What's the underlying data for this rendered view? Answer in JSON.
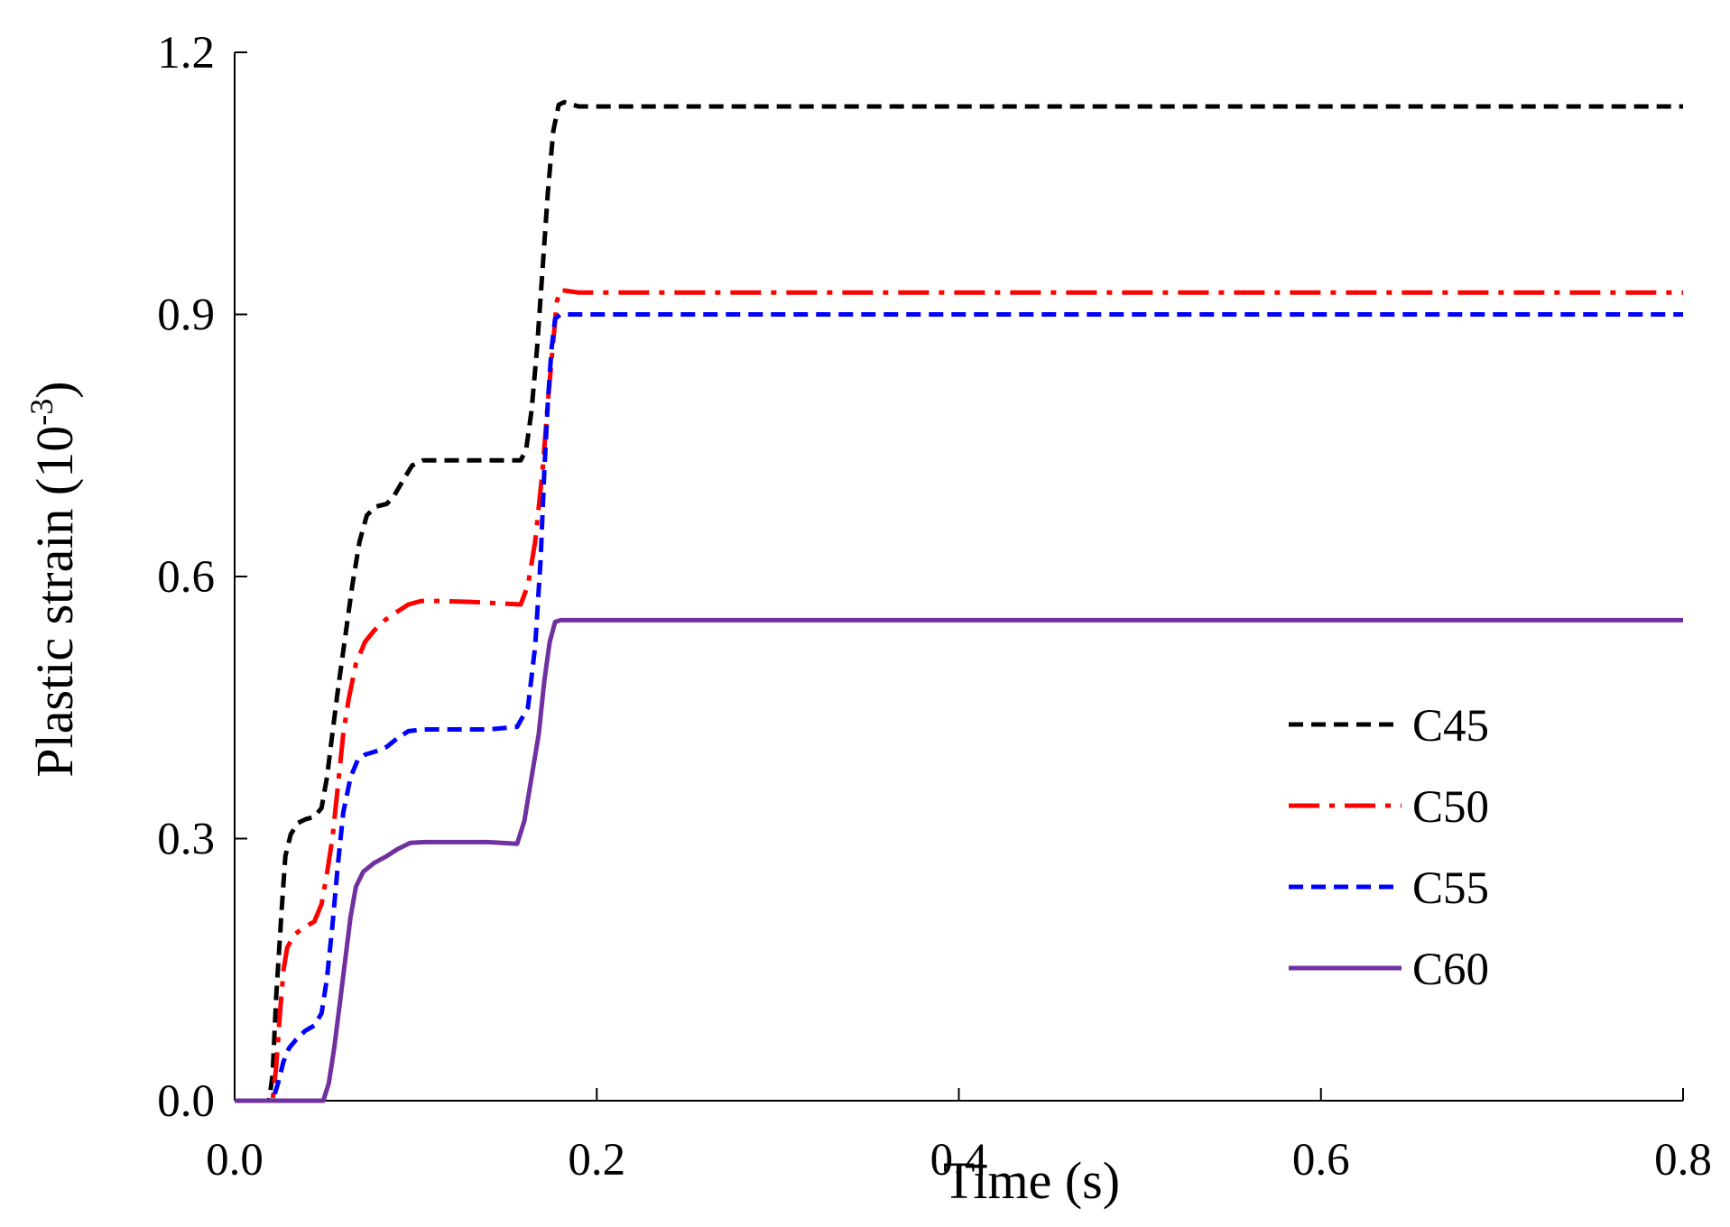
{
  "chart_data": {
    "type": "line",
    "title": "",
    "xlabel": "Time (s)",
    "ylabel": {
      "main": "Plastic strain (10",
      "sup": "-3",
      "close": ")"
    },
    "xlim": [
      0,
      0.8
    ],
    "ylim": [
      0,
      1.2
    ],
    "xticks": [
      0.0,
      0.2,
      0.4,
      0.6,
      0.8
    ],
    "xtick_labels": [
      "0.0",
      "0.2",
      "0.4",
      "0.6",
      "0.8"
    ],
    "yticks": [
      0.0,
      0.3,
      0.6,
      0.9,
      1.2
    ],
    "ytick_labels": [
      "0.0",
      "0.3",
      "0.6",
      "0.9",
      "1.2"
    ],
    "grid": false,
    "legend_position": "center-right",
    "series": [
      {
        "name": "C45",
        "color": "#000000",
        "style": "dashed",
        "points": [
          [
            0,
            0
          ],
          [
            0.019,
            0
          ],
          [
            0.021,
            0.03
          ],
          [
            0.023,
            0.12
          ],
          [
            0.026,
            0.22
          ],
          [
            0.028,
            0.28
          ],
          [
            0.031,
            0.305
          ],
          [
            0.035,
            0.318
          ],
          [
            0.039,
            0.322
          ],
          [
            0.044,
            0.325
          ],
          [
            0.048,
            0.335
          ],
          [
            0.051,
            0.37
          ],
          [
            0.054,
            0.42
          ],
          [
            0.057,
            0.47
          ],
          [
            0.061,
            0.53
          ],
          [
            0.065,
            0.59
          ],
          [
            0.069,
            0.64
          ],
          [
            0.073,
            0.67
          ],
          [
            0.078,
            0.68
          ],
          [
            0.084,
            0.683
          ],
          [
            0.088,
            0.692
          ],
          [
            0.093,
            0.71
          ],
          [
            0.098,
            0.727
          ],
          [
            0.104,
            0.733
          ],
          [
            0.112,
            0.733
          ],
          [
            0.124,
            0.733
          ],
          [
            0.148,
            0.733
          ],
          [
            0.158,
            0.733
          ],
          [
            0.161,
            0.745
          ],
          [
            0.164,
            0.79
          ],
          [
            0.167,
            0.86
          ],
          [
            0.17,
            0.95
          ],
          [
            0.173,
            1.04
          ],
          [
            0.176,
            1.11
          ],
          [
            0.179,
            1.14
          ],
          [
            0.182,
            1.143
          ],
          [
            0.19,
            1.138
          ],
          [
            0.8,
            1.138
          ]
        ]
      },
      {
        "name": "C50",
        "color": "#ff0000",
        "style": "dashdot",
        "points": [
          [
            0,
            0
          ],
          [
            0.021,
            0
          ],
          [
            0.023,
            0.04
          ],
          [
            0.025,
            0.1
          ],
          [
            0.027,
            0.15
          ],
          [
            0.029,
            0.175
          ],
          [
            0.033,
            0.19
          ],
          [
            0.038,
            0.198
          ],
          [
            0.044,
            0.205
          ],
          [
            0.048,
            0.225
          ],
          [
            0.051,
            0.26
          ],
          [
            0.054,
            0.3
          ],
          [
            0.057,
            0.36
          ],
          [
            0.06,
            0.42
          ],
          [
            0.063,
            0.46
          ],
          [
            0.067,
            0.5
          ],
          [
            0.072,
            0.525
          ],
          [
            0.077,
            0.538
          ],
          [
            0.083,
            0.55
          ],
          [
            0.09,
            0.56
          ],
          [
            0.096,
            0.568
          ],
          [
            0.103,
            0.572
          ],
          [
            0.112,
            0.572
          ],
          [
            0.13,
            0.571
          ],
          [
            0.158,
            0.568
          ],
          [
            0.162,
            0.59
          ],
          [
            0.166,
            0.64
          ],
          [
            0.17,
            0.72
          ],
          [
            0.173,
            0.8
          ],
          [
            0.176,
            0.87
          ],
          [
            0.178,
            0.915
          ],
          [
            0.18,
            0.928
          ],
          [
            0.19,
            0.925
          ],
          [
            0.8,
            0.925
          ]
        ]
      },
      {
        "name": "C55",
        "color": "#0000ff",
        "style": "dashed",
        "points": [
          [
            0,
            0
          ],
          [
            0.021,
            0
          ],
          [
            0.024,
            0.02
          ],
          [
            0.027,
            0.045
          ],
          [
            0.03,
            0.06
          ],
          [
            0.034,
            0.07
          ],
          [
            0.039,
            0.08
          ],
          [
            0.044,
            0.086
          ],
          [
            0.048,
            0.1
          ],
          [
            0.051,
            0.14
          ],
          [
            0.054,
            0.2
          ],
          [
            0.057,
            0.27
          ],
          [
            0.06,
            0.33
          ],
          [
            0.064,
            0.37
          ],
          [
            0.068,
            0.39
          ],
          [
            0.072,
            0.396
          ],
          [
            0.078,
            0.4
          ],
          [
            0.084,
            0.405
          ],
          [
            0.09,
            0.415
          ],
          [
            0.096,
            0.423
          ],
          [
            0.104,
            0.425
          ],
          [
            0.112,
            0.425
          ],
          [
            0.14,
            0.425
          ],
          [
            0.156,
            0.428
          ],
          [
            0.162,
            0.45
          ],
          [
            0.166,
            0.52
          ],
          [
            0.169,
            0.62
          ],
          [
            0.171,
            0.72
          ],
          [
            0.173,
            0.8
          ],
          [
            0.175,
            0.86
          ],
          [
            0.177,
            0.895
          ],
          [
            0.18,
            0.9
          ],
          [
            0.8,
            0.9
          ]
        ]
      },
      {
        "name": "C60",
        "color": "#7030a0",
        "style": "solid",
        "points": [
          [
            0,
            0
          ],
          [
            0.049,
            0
          ],
          [
            0.052,
            0.02
          ],
          [
            0.055,
            0.06
          ],
          [
            0.058,
            0.11
          ],
          [
            0.061,
            0.16
          ],
          [
            0.064,
            0.21
          ],
          [
            0.067,
            0.245
          ],
          [
            0.071,
            0.262
          ],
          [
            0.077,
            0.272
          ],
          [
            0.084,
            0.28
          ],
          [
            0.09,
            0.288
          ],
          [
            0.097,
            0.295
          ],
          [
            0.105,
            0.296
          ],
          [
            0.14,
            0.296
          ],
          [
            0.156,
            0.294
          ],
          [
            0.16,
            0.32
          ],
          [
            0.164,
            0.37
          ],
          [
            0.168,
            0.42
          ],
          [
            0.171,
            0.48
          ],
          [
            0.174,
            0.525
          ],
          [
            0.177,
            0.548
          ],
          [
            0.18,
            0.55
          ],
          [
            0.8,
            0.55
          ]
        ]
      }
    ]
  }
}
